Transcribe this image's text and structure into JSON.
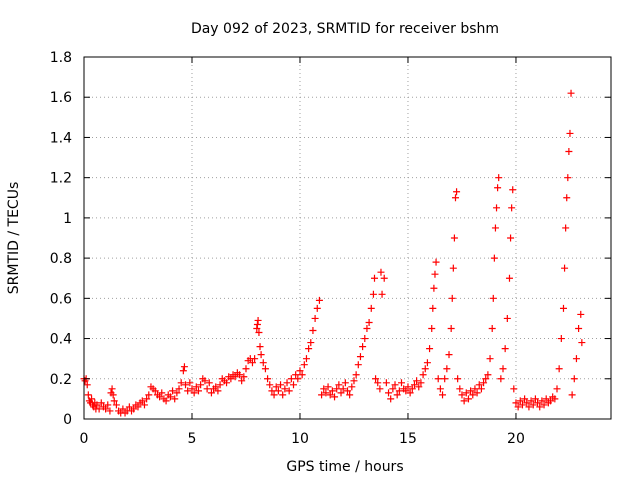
{
  "chart_data": {
    "type": "scatter",
    "title": "Day 092 of 2023, SRMTID for receiver bshm",
    "xlabel": "GPS time / hours",
    "ylabel": "SRMTID / TECUs",
    "xlim": [
      0,
      24.4
    ],
    "ylim": [
      0,
      1.8
    ],
    "xticks": [
      0,
      5,
      10,
      15,
      20
    ],
    "xtick_labels": [
      "0",
      "5",
      "10",
      "15",
      "20"
    ],
    "yticks": [
      0,
      0.2,
      0.4,
      0.6,
      0.8,
      1,
      1.2,
      1.4,
      1.6,
      1.8
    ],
    "ytick_labels": [
      "0",
      "0.2",
      "0.4",
      "0.6",
      "0.8",
      "1",
      "1.2",
      "1.4",
      "1.6",
      "1.8"
    ],
    "grid": true,
    "marker": "+",
    "color": "#ff0000",
    "series": [
      {
        "name": "SRMTID",
        "points": [
          [
            0.0,
            0.2
          ],
          [
            0.05,
            0.19
          ],
          [
            0.1,
            0.2
          ],
          [
            0.15,
            0.17
          ],
          [
            0.2,
            0.12
          ],
          [
            0.25,
            0.09
          ],
          [
            0.3,
            0.08
          ],
          [
            0.35,
            0.1
          ],
          [
            0.4,
            0.07
          ],
          [
            0.45,
            0.06
          ],
          [
            0.5,
            0.08
          ],
          [
            0.55,
            0.05
          ],
          [
            0.6,
            0.07
          ],
          [
            0.7,
            0.05
          ],
          [
            0.8,
            0.08
          ],
          [
            0.9,
            0.06
          ],
          [
            1.0,
            0.05
          ],
          [
            1.1,
            0.07
          ],
          [
            1.2,
            0.04
          ],
          [
            1.25,
            0.13
          ],
          [
            1.3,
            0.15
          ],
          [
            1.35,
            0.12
          ],
          [
            1.4,
            0.09
          ],
          [
            1.5,
            0.07
          ],
          [
            1.6,
            0.04
          ],
          [
            1.7,
            0.03
          ],
          [
            1.8,
            0.05
          ],
          [
            1.9,
            0.03
          ],
          [
            2.0,
            0.04
          ],
          [
            2.1,
            0.06
          ],
          [
            2.2,
            0.04
          ],
          [
            2.3,
            0.05
          ],
          [
            2.4,
            0.07
          ],
          [
            2.5,
            0.06
          ],
          [
            2.6,
            0.08
          ],
          [
            2.7,
            0.09
          ],
          [
            2.8,
            0.07
          ],
          [
            2.9,
            0.1
          ],
          [
            3.0,
            0.12
          ],
          [
            3.1,
            0.16
          ],
          [
            3.2,
            0.15
          ],
          [
            3.3,
            0.14
          ],
          [
            3.4,
            0.12
          ],
          [
            3.5,
            0.11
          ],
          [
            3.6,
            0.13
          ],
          [
            3.7,
            0.1
          ],
          [
            3.8,
            0.09
          ],
          [
            3.9,
            0.12
          ],
          [
            4.0,
            0.11
          ],
          [
            4.1,
            0.14
          ],
          [
            4.2,
            0.1
          ],
          [
            4.3,
            0.13
          ],
          [
            4.4,
            0.15
          ],
          [
            4.5,
            0.18
          ],
          [
            4.6,
            0.24
          ],
          [
            4.65,
            0.26
          ],
          [
            4.7,
            0.17
          ],
          [
            4.8,
            0.14
          ],
          [
            4.9,
            0.18
          ],
          [
            5.0,
            0.15
          ],
          [
            5.1,
            0.13
          ],
          [
            5.2,
            0.16
          ],
          [
            5.3,
            0.14
          ],
          [
            5.4,
            0.17
          ],
          [
            5.5,
            0.2
          ],
          [
            5.6,
            0.19
          ],
          [
            5.7,
            0.15
          ],
          [
            5.8,
            0.18
          ],
          [
            5.9,
            0.13
          ],
          [
            6.0,
            0.15
          ],
          [
            6.1,
            0.16
          ],
          [
            6.2,
            0.14
          ],
          [
            6.3,
            0.17
          ],
          [
            6.4,
            0.2
          ],
          [
            6.5,
            0.19
          ],
          [
            6.6,
            0.18
          ],
          [
            6.7,
            0.21
          ],
          [
            6.8,
            0.2
          ],
          [
            6.9,
            0.22
          ],
          [
            7.0,
            0.21
          ],
          [
            7.1,
            0.23
          ],
          [
            7.2,
            0.22
          ],
          [
            7.3,
            0.19
          ],
          [
            7.4,
            0.21
          ],
          [
            7.5,
            0.25
          ],
          [
            7.6,
            0.29
          ],
          [
            7.7,
            0.3
          ],
          [
            7.8,
            0.28
          ],
          [
            7.9,
            0.3
          ],
          [
            8.0,
            0.45
          ],
          [
            8.03,
            0.47
          ],
          [
            8.06,
            0.49
          ],
          [
            8.1,
            0.43
          ],
          [
            8.15,
            0.36
          ],
          [
            8.2,
            0.32
          ],
          [
            8.3,
            0.28
          ],
          [
            8.4,
            0.25
          ],
          [
            8.5,
            0.2
          ],
          [
            8.6,
            0.17
          ],
          [
            8.7,
            0.14
          ],
          [
            8.8,
            0.12
          ],
          [
            8.9,
            0.16
          ],
          [
            9.0,
            0.14
          ],
          [
            9.1,
            0.17
          ],
          [
            9.2,
            0.12
          ],
          [
            9.3,
            0.15
          ],
          [
            9.4,
            0.18
          ],
          [
            9.5,
            0.14
          ],
          [
            9.6,
            0.2
          ],
          [
            9.7,
            0.17
          ],
          [
            9.8,
            0.22
          ],
          [
            9.9,
            0.2
          ],
          [
            10.0,
            0.24
          ],
          [
            10.1,
            0.22
          ],
          [
            10.2,
            0.27
          ],
          [
            10.3,
            0.3
          ],
          [
            10.4,
            0.35
          ],
          [
            10.5,
            0.38
          ],
          [
            10.6,
            0.44
          ],
          [
            10.7,
            0.5
          ],
          [
            10.8,
            0.55
          ],
          [
            10.9,
            0.59
          ],
          [
            11.0,
            0.12
          ],
          [
            11.1,
            0.15
          ],
          [
            11.2,
            0.13
          ],
          [
            11.3,
            0.16
          ],
          [
            11.4,
            0.12
          ],
          [
            11.5,
            0.14
          ],
          [
            11.6,
            0.11
          ],
          [
            11.7,
            0.15
          ],
          [
            11.8,
            0.17
          ],
          [
            11.9,
            0.13
          ],
          [
            12.0,
            0.15
          ],
          [
            12.1,
            0.18
          ],
          [
            12.2,
            0.14
          ],
          [
            12.3,
            0.12
          ],
          [
            12.4,
            0.16
          ],
          [
            12.5,
            0.19
          ],
          [
            12.6,
            0.22
          ],
          [
            12.7,
            0.27
          ],
          [
            12.8,
            0.31
          ],
          [
            12.9,
            0.36
          ],
          [
            13.0,
            0.4
          ],
          [
            13.1,
            0.45
          ],
          [
            13.2,
            0.48
          ],
          [
            13.3,
            0.55
          ],
          [
            13.4,
            0.62
          ],
          [
            13.45,
            0.7
          ],
          [
            13.5,
            0.2
          ],
          [
            13.6,
            0.18
          ],
          [
            13.7,
            0.15
          ],
          [
            13.75,
            0.73
          ],
          [
            13.8,
            0.62
          ],
          [
            13.9,
            0.7
          ],
          [
            14.0,
            0.18
          ],
          [
            14.1,
            0.13
          ],
          [
            14.2,
            0.1
          ],
          [
            14.3,
            0.15
          ],
          [
            14.4,
            0.17
          ],
          [
            14.5,
            0.12
          ],
          [
            14.6,
            0.14
          ],
          [
            14.7,
            0.18
          ],
          [
            14.8,
            0.15
          ],
          [
            14.9,
            0.14
          ],
          [
            15.0,
            0.16
          ],
          [
            15.1,
            0.13
          ],
          [
            15.2,
            0.15
          ],
          [
            15.3,
            0.17
          ],
          [
            15.4,
            0.19
          ],
          [
            15.5,
            0.16
          ],
          [
            15.6,
            0.18
          ],
          [
            15.7,
            0.22
          ],
          [
            15.8,
            0.25
          ],
          [
            15.9,
            0.28
          ],
          [
            16.0,
            0.35
          ],
          [
            16.1,
            0.45
          ],
          [
            16.15,
            0.55
          ],
          [
            16.2,
            0.65
          ],
          [
            16.25,
            0.72
          ],
          [
            16.3,
            0.78
          ],
          [
            16.4,
            0.2
          ],
          [
            16.5,
            0.15
          ],
          [
            16.6,
            0.12
          ],
          [
            16.7,
            0.2
          ],
          [
            16.8,
            0.25
          ],
          [
            16.9,
            0.32
          ],
          [
            17.0,
            0.45
          ],
          [
            17.05,
            0.6
          ],
          [
            17.1,
            0.75
          ],
          [
            17.15,
            0.9
          ],
          [
            17.2,
            1.1
          ],
          [
            17.25,
            1.13
          ],
          [
            17.3,
            0.2
          ],
          [
            17.4,
            0.15
          ],
          [
            17.5,
            0.12
          ],
          [
            17.6,
            0.09
          ],
          [
            17.7,
            0.13
          ],
          [
            17.8,
            0.1
          ],
          [
            17.9,
            0.14
          ],
          [
            18.0,
            0.12
          ],
          [
            18.1,
            0.15
          ],
          [
            18.2,
            0.13
          ],
          [
            18.3,
            0.17
          ],
          [
            18.4,
            0.15
          ],
          [
            18.5,
            0.18
          ],
          [
            18.6,
            0.2
          ],
          [
            18.7,
            0.22
          ],
          [
            18.8,
            0.3
          ],
          [
            18.9,
            0.45
          ],
          [
            18.95,
            0.6
          ],
          [
            19.0,
            0.8
          ],
          [
            19.05,
            0.95
          ],
          [
            19.1,
            1.05
          ],
          [
            19.15,
            1.15
          ],
          [
            19.2,
            1.2
          ],
          [
            19.3,
            0.2
          ],
          [
            19.4,
            0.25
          ],
          [
            19.5,
            0.35
          ],
          [
            19.6,
            0.5
          ],
          [
            19.7,
            0.7
          ],
          [
            19.75,
            0.9
          ],
          [
            19.8,
            1.05
          ],
          [
            19.85,
            1.14
          ],
          [
            19.9,
            0.15
          ],
          [
            20.0,
            0.08
          ],
          [
            20.1,
            0.06
          ],
          [
            20.2,
            0.09
          ],
          [
            20.3,
            0.07
          ],
          [
            20.4,
            0.1
          ],
          [
            20.5,
            0.08
          ],
          [
            20.6,
            0.06
          ],
          [
            20.7,
            0.09
          ],
          [
            20.8,
            0.07
          ],
          [
            20.9,
            0.1
          ],
          [
            21.0,
            0.08
          ],
          [
            21.1,
            0.06
          ],
          [
            21.2,
            0.09
          ],
          [
            21.3,
            0.07
          ],
          [
            21.4,
            0.1
          ],
          [
            21.5,
            0.08
          ],
          [
            21.6,
            0.09
          ],
          [
            21.7,
            0.11
          ],
          [
            21.8,
            0.1
          ],
          [
            21.9,
            0.15
          ],
          [
            22.0,
            0.25
          ],
          [
            22.1,
            0.4
          ],
          [
            22.2,
            0.55
          ],
          [
            22.25,
            0.75
          ],
          [
            22.3,
            0.95
          ],
          [
            22.35,
            1.1
          ],
          [
            22.4,
            1.2
          ],
          [
            22.45,
            1.33
          ],
          [
            22.5,
            1.42
          ],
          [
            22.55,
            1.62
          ],
          [
            22.6,
            0.12
          ],
          [
            22.7,
            0.2
          ],
          [
            22.8,
            0.3
          ],
          [
            22.9,
            0.45
          ],
          [
            23.0,
            0.52
          ],
          [
            23.05,
            0.38
          ]
        ]
      }
    ]
  }
}
